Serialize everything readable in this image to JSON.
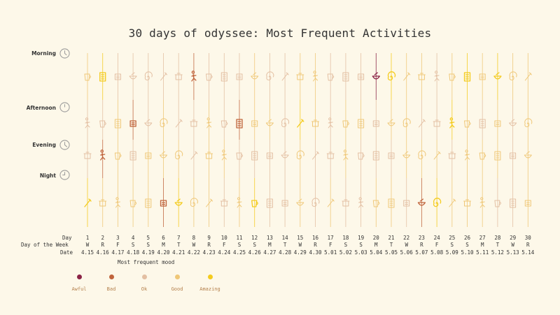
{
  "title": "30 days of odyssee: Most Frequent Activities",
  "periods": [
    {
      "label": "Morning",
      "icon": "clock-icon"
    },
    {
      "label": "Afternoon",
      "icon": "clock-icon"
    },
    {
      "label": "Evening",
      "icon": "clock-icon"
    },
    {
      "label": "Night",
      "icon": "clock-icon"
    }
  ],
  "row_labels": {
    "day": "Day",
    "weekday": "Day of the Week",
    "date": "Date"
  },
  "legend": {
    "title": "Most frequent mood",
    "items": [
      {
        "label": "Awful",
        "color": "#8b2346"
      },
      {
        "label": "Bad",
        "color": "#c0643c"
      },
      {
        "label": "Ok",
        "color": "#e3bfa2"
      },
      {
        "label": "Good",
        "color": "#efc777"
      },
      {
        "label": "Amazing",
        "color": "#f4cb1e"
      }
    ]
  },
  "chart_data": {
    "type": "table",
    "title": "30 days of odyssee: Most Frequent Activities",
    "days": [
      "1",
      "2",
      "3",
      "4",
      "5",
      "6",
      "7",
      "8",
      "9",
      "10",
      "11",
      "12",
      "13",
      "14",
      "15",
      "16",
      "17",
      "18",
      "19",
      "20",
      "21",
      "22",
      "23",
      "24",
      "25",
      "26",
      "27",
      "28",
      "29",
      "30"
    ],
    "weekdays": [
      "W",
      "R",
      "F",
      "S",
      "S",
      "M",
      "T",
      "W",
      "R",
      "F",
      "S",
      "S",
      "M",
      "T",
      "W",
      "R",
      "F",
      "S",
      "S",
      "M",
      "T",
      "W",
      "R",
      "F",
      "S",
      "S",
      "M",
      "T",
      "W",
      "R"
    ],
    "dates": [
      "4.15",
      "4.16",
      "4.17",
      "4.18",
      "4.19",
      "4.20",
      "4.21",
      "4.22",
      "4.23",
      "4.24",
      "4.25",
      "4.26",
      "4.27",
      "4.28",
      "4.29",
      "4.30",
      "5.01",
      "5.02",
      "5.03",
      "5.04",
      "5.05",
      "5.06",
      "5.07",
      "5.08",
      "5.09",
      "5.10",
      "5.11",
      "5.12",
      "5.13",
      "5.14"
    ],
    "mood_scale": [
      "Awful",
      "Bad",
      "Ok",
      "Good",
      "Amazing"
    ],
    "moods": {
      "Morning": [
        "Good",
        "Amazing",
        "Ok",
        "Ok",
        "Ok",
        "Ok",
        "Ok",
        "Bad",
        "Ok",
        "Ok",
        "Ok",
        "Good",
        "Ok",
        "Ok",
        "Good",
        "Good",
        "Ok",
        "Ok",
        "Ok",
        "Awful",
        "Amazing",
        "Good",
        "Good",
        "Ok",
        "Good",
        "Amazing",
        "Good",
        "Amazing",
        "Good",
        "Good"
      ],
      "Afternoon": [
        "Ok",
        "Ok",
        "Good",
        "Bad",
        "Ok",
        "Good",
        "Ok",
        "Ok",
        "Good",
        "Ok",
        "Bad",
        "Good",
        "Good",
        "Ok",
        "Amazing",
        "Good",
        "Ok",
        "Good",
        "Good",
        "Ok",
        "Good",
        "Good",
        "Ok",
        "Ok",
        "Amazing",
        "Good",
        "Ok",
        "Good",
        "Ok",
        "Good"
      ],
      "Evening": [
        "Ok",
        "Bad",
        "Good",
        "Ok",
        "Good",
        "Good",
        "Good",
        "Ok",
        "Good",
        "Good",
        "Ok",
        "Ok",
        "Ok",
        "Ok",
        "Good",
        "Ok",
        "Ok",
        "Good",
        "Ok",
        "Ok",
        "Ok",
        "Good",
        "Good",
        "Good",
        "Ok",
        "Good",
        "Good",
        "Good",
        "Ok",
        "Good"
      ],
      "Night": [
        "Amazing",
        "Good",
        "Good",
        "Good",
        "Good",
        "Bad",
        "Amazing",
        "Good",
        "Good",
        "Ok",
        "Good",
        "Amazing",
        "Ok",
        "Ok",
        "Good",
        "Ok",
        "Good",
        "Ok",
        "Ok",
        "Good",
        "Good",
        "Ok",
        "Bad",
        "Amazing",
        "Good",
        "Good",
        "Good",
        "Ok",
        "Ok",
        "Good"
      ]
    }
  }
}
